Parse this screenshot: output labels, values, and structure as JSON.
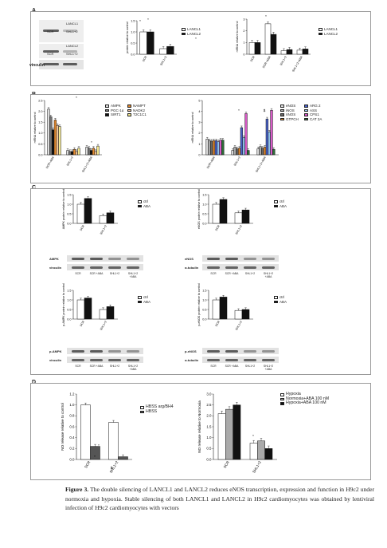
{
  "panels": [
    {
      "label": "A"
    },
    {
      "label": "B"
    },
    {
      "label": "C"
    },
    {
      "label": "D"
    }
  ],
  "panelA": {
    "blot_labels": {
      "lancl1": "LANCL1",
      "lancl2": "LANCL2",
      "scr1": "SCR",
      "shl1": "SHL1+2",
      "scr2": "SCR",
      "shl2": "SHL1+2",
      "vinculin": "vinculin"
    },
    "chart1": {
      "ylabel": "protein relative to control",
      "yticks": [
        "0.0",
        "0.5",
        "1.0",
        "1.5"
      ],
      "categories": [
        "SCR",
        "SHL1+2"
      ],
      "legend": [
        "LANCL1",
        "LANCL2"
      ]
    },
    "chart2": {
      "ylabel": "mRNA relative to control",
      "yticks": [
        "0",
        "1",
        "2",
        "3"
      ],
      "categories": [
        "SCR",
        "SCR+ABA",
        "SHL1+2",
        "SHL1+2+ABA"
      ],
      "legend": [
        "LANCL1",
        "LANCL2"
      ]
    }
  },
  "panelB": {
    "chart1": {
      "ylabel": "mRNA relative to control",
      "yticks": [
        "0.0",
        "0.5",
        "1.0",
        "1.5",
        "2.0",
        "2.5"
      ],
      "categories": [
        "SCR+ABA",
        "SHL1+2",
        "SHL1+2+ABA"
      ],
      "legend": [
        "AMPK",
        "PGC-1α",
        "SIRT1",
        "NAMPT",
        "NADK2",
        "T2C1C1"
      ],
      "stat": "$"
    },
    "chart2": {
      "ylabel": "mRNA relative to control",
      "yticks": [
        "0",
        "1",
        "2",
        "3",
        "4",
        "5"
      ],
      "categories": [
        "SCR+ABA",
        "SHL1+2",
        "SHL1+2+ABA"
      ],
      "legend": [
        "eNOS",
        "iNOS",
        "nNOS",
        "GTPCH",
        "ARG 2",
        "ASS",
        "CPS1",
        "CAT 2A"
      ],
      "stat": "$"
    }
  },
  "panelC": {
    "charts": [
      {
        "ylabel": "AMPK protein relative to control",
        "yticks": [
          "0.0",
          "0.5",
          "1.0",
          "1.5"
        ],
        "categories": [
          "SCR",
          "SHL1+2"
        ],
        "legend": [
          "ctrl",
          "ABA"
        ],
        "blot": "AMPK",
        "loading": "vinculin"
      },
      {
        "ylabel": "eNOS protein relative to control",
        "yticks": [
          "0.0",
          "0.5",
          "1.0",
          "1.5"
        ],
        "categories": [
          "SCR",
          "SHL1+2"
        ],
        "legend": [
          "ctrl",
          "ABA"
        ],
        "blot": "eNOS",
        "loading": "α-tubulin"
      },
      {
        "ylabel": "p-AMPK protein relative to control",
        "yticks": [
          "0.0",
          "0.5",
          "1.0",
          "1.5"
        ],
        "categories": [
          "SCR",
          "SHL1+2"
        ],
        "legend": [
          "ctrl",
          "ABA"
        ],
        "blot": "p-AMPK",
        "loading": "vinculin"
      },
      {
        "ylabel": "p-eNOS protein relative to control",
        "yticks": [
          "0.0",
          "0.5",
          "1.0",
          "1.5"
        ],
        "categories": [
          "SCR",
          "SHL1+2"
        ],
        "legend": [
          "ctrl",
          "ABA"
        ],
        "blot": "p-eNOS",
        "loading": "α-tubulin"
      }
    ],
    "lane_labels": [
      "SCR",
      "SCR +ABA",
      "SHL1+2",
      "SHL1+2 +ABA"
    ]
  },
  "panelD": {
    "chart1": {
      "ylabel": "NO release relative to control",
      "yticks": [
        "0.0",
        "0.2",
        "0.4",
        "0.6",
        "0.8",
        "1.0",
        "1.2"
      ],
      "categories": [
        "SCR",
        "SHL1+2"
      ],
      "legend": [
        "HBSS arg/BH4",
        "HBSS"
      ]
    },
    "chart2": {
      "ylabel": "NO release relative to Normoxia",
      "yticks": [
        "0.0",
        "0.5",
        "1.0",
        "1.5",
        "2.0",
        "2.5",
        "3.0"
      ],
      "categories": [
        "SCR",
        "SHL1+2"
      ],
      "legend": [
        "Hypoxia",
        "Normoxia+ABA 100 nM",
        "Hypoxia+ABA 100 nM"
      ]
    }
  },
  "caption": {
    "figure_label": "Figure 3.",
    "text": "The double silencing of LANCL1 and LANCL2 reduces eNOS transcription, expression and function in H9c2 under normoxia and hypoxia. Stable silencing of both LANCL1 and LANCL2 in H9c2 cardiomyocytes was obtained by lentiviral infection of H9c2 cardiomyocytes with vectors"
  },
  "chart_data": [
    {
      "type": "bar",
      "ylabel": "protein relative to control",
      "categories": [
        "SCR",
        "SHL1+2"
      ],
      "ylim": [
        0,
        1.5
      ],
      "series": [
        {
          "name": "LANCL1",
          "values": [
            1.0,
            0.25
          ]
        },
        {
          "name": "LANCL2",
          "values": [
            1.0,
            0.35
          ]
        }
      ]
    },
    {
      "type": "bar",
      "ylabel": "mRNA relative to control",
      "categories": [
        "SCR",
        "SCR+ABA",
        "SHL1+2",
        "SHL1+2+ABA"
      ],
      "ylim": [
        0,
        3
      ],
      "series": [
        {
          "name": "LANCL1",
          "values": [
            1.0,
            2.6,
            0.3,
            0.35
          ]
        },
        {
          "name": "LANCL2",
          "values": [
            1.0,
            1.7,
            0.4,
            0.45
          ]
        }
      ]
    },
    {
      "type": "bar",
      "ylabel": "mRNA relative to control",
      "categories": [
        "SCR+ABA",
        "SHL1+2",
        "SHL1+2+ABA"
      ],
      "ylim": [
        0,
        2.5
      ],
      "series": [
        {
          "name": "AMPK",
          "values": [
            2.1,
            0.2,
            0.35
          ]
        },
        {
          "name": "PGC-1α",
          "values": [
            1.75,
            0.15,
            0.3
          ]
        },
        {
          "name": "SIRT1",
          "values": [
            1.15,
            0.15,
            0.2
          ]
        },
        {
          "name": "NAMPT",
          "values": [
            1.6,
            0.25,
            0.3
          ]
        },
        {
          "name": "NADK2",
          "values": [
            1.35,
            0.15,
            0.15
          ]
        },
        {
          "name": "T2C1C1",
          "values": [
            1.3,
            0.3,
            0.4
          ]
        }
      ]
    },
    {
      "type": "bar",
      "ylabel": "mRNA relative to control",
      "categories": [
        "SCR+ABA",
        "SHL1+2",
        "SHL1+2+ABA"
      ],
      "ylim": [
        0,
        5
      ],
      "series": [
        {
          "name": "eNOS",
          "values": [
            1.45,
            0.4,
            0.55
          ]
        },
        {
          "name": "iNOS",
          "values": [
            1.3,
            0.7,
            0.75
          ]
        },
        {
          "name": "nNOS",
          "values": [
            1.25,
            0.55,
            0.6
          ]
        },
        {
          "name": "GTPCH",
          "values": [
            1.3,
            0.6,
            0.7
          ]
        },
        {
          "name": "ARG 2",
          "values": [
            1.3,
            2.5,
            3.3
          ]
        },
        {
          "name": "ASS",
          "values": [
            1.2,
            1.6,
            2.1
          ]
        },
        {
          "name": "CPS1",
          "values": [
            1.35,
            3.8,
            4.1
          ]
        },
        {
          "name": "CAT 2A",
          "values": [
            1.35,
            0.4,
            0.5
          ]
        }
      ]
    },
    {
      "type": "bar",
      "ylabel": "AMPK protein relative to control",
      "categories": [
        "SCR",
        "SHL1+2"
      ],
      "ylim": [
        0,
        1.5
      ],
      "series": [
        {
          "name": "ctrl",
          "values": [
            1.0,
            0.4
          ]
        },
        {
          "name": "ABA",
          "values": [
            1.3,
            0.55
          ]
        }
      ]
    },
    {
      "type": "bar",
      "ylabel": "eNOS protein relative to control",
      "categories": [
        "SCR",
        "SHL1+2"
      ],
      "ylim": [
        0,
        1.5
      ],
      "series": [
        {
          "name": "ctrl",
          "values": [
            1.0,
            0.55
          ]
        },
        {
          "name": "ABA",
          "values": [
            1.25,
            0.7
          ]
        }
      ]
    },
    {
      "type": "bar",
      "ylabel": "p-AMPK protein relative to control",
      "categories": [
        "SCR",
        "SHL1+2"
      ],
      "ylim": [
        0,
        1.5
      ],
      "series": [
        {
          "name": "ctrl",
          "values": [
            1.0,
            0.5
          ]
        },
        {
          "name": "ABA",
          "values": [
            1.1,
            0.65
          ]
        }
      ]
    },
    {
      "type": "bar",
      "ylabel": "p-eNOS protein relative to control",
      "categories": [
        "SCR",
        "SHL1+2"
      ],
      "ylim": [
        0,
        1.5
      ],
      "series": [
        {
          "name": "ctrl",
          "values": [
            1.0,
            0.45
          ]
        },
        {
          "name": "ABA",
          "values": [
            1.15,
            0.5
          ]
        }
      ]
    },
    {
      "type": "bar",
      "ylabel": "NO release relative to control",
      "categories": [
        "SCR",
        "SHL1+2"
      ],
      "ylim": [
        0,
        1.2
      ],
      "series": [
        {
          "name": "HBSS arg/BH4",
          "values": [
            1.0,
            0.68
          ]
        },
        {
          "name": "HBSS",
          "values": [
            0.24,
            0.05
          ]
        }
      ]
    },
    {
      "type": "bar",
      "ylabel": "NO release relative to Normoxia",
      "categories": [
        "SCR",
        "SHL1+2"
      ],
      "ylim": [
        0,
        3
      ],
      "series": [
        {
          "name": "Hypoxia",
          "values": [
            2.1,
            0.75
          ]
        },
        {
          "name": "Normoxia+ABA 100 nM",
          "values": [
            2.3,
            0.85
          ]
        },
        {
          "name": "Hypoxia+ABA 100 nM",
          "values": [
            2.5,
            0.5
          ]
        }
      ]
    }
  ]
}
